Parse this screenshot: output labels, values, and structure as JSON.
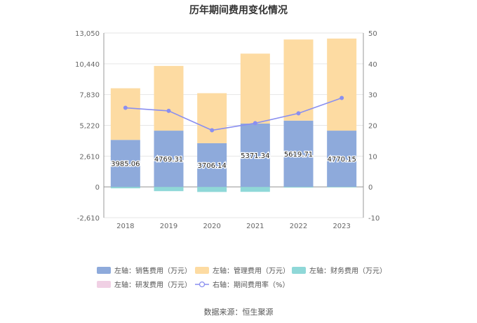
{
  "title": "历年期间费用变化情况",
  "source": "数据来源：恒生聚源",
  "chart_data": {
    "type": "bar",
    "categories": [
      "2018",
      "2019",
      "2020",
      "2021",
      "2022",
      "2023"
    ],
    "series": [
      {
        "name": "左轴：销售费用（万元）",
        "axis": "left",
        "kind": "bar",
        "color": "#8eaadb",
        "values": [
          3985.06,
          4769.31,
          3706.14,
          5371.34,
          5619.71,
          4770.15
        ],
        "labels": [
          "3985.06",
          "4769.31",
          "3706.14",
          "5371.34",
          "5619.71",
          "4770.15"
        ]
      },
      {
        "name": "左轴：管理费用（万元）",
        "axis": "left",
        "kind": "bar",
        "color": "#fddba2",
        "values": [
          4380,
          5490,
          4240,
          5930,
          6880,
          7810
        ]
      },
      {
        "name": "左轴：财务费用（万元）",
        "axis": "left",
        "kind": "bar",
        "color": "#8fd8d8",
        "values": [
          -120,
          -360,
          -430,
          -420,
          -60,
          -40
        ]
      },
      {
        "name": "左轴：研发费用（万元）",
        "axis": "left",
        "kind": "bar",
        "color": "#f0d0e4",
        "values": [
          0,
          0,
          0,
          0,
          0,
          0
        ]
      },
      {
        "name": "右轴：期间费用率（%）",
        "axis": "right",
        "kind": "line",
        "color": "#8a8ff0",
        "values": [
          25.7,
          24.7,
          18.4,
          20.7,
          23.9,
          28.9
        ]
      }
    ],
    "y_left": {
      "ylim": [
        -2610,
        13050
      ],
      "ticks": [
        "13,050",
        "10,440",
        "7,830",
        "5,220",
        "2,610",
        "0",
        "-2,610"
      ]
    },
    "y_right": {
      "ylim": [
        -10,
        50
      ],
      "ticks": [
        "50",
        "40",
        "30",
        "20",
        "10",
        "0",
        "-10"
      ]
    },
    "grid": true,
    "legend_position": "bottom"
  }
}
